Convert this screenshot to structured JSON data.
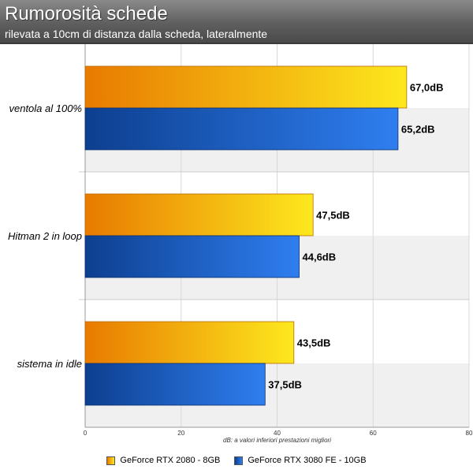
{
  "chart_data": {
    "type": "bar",
    "orientation": "horizontal",
    "title": "Rumorosità schede",
    "subtitle": "rilevata a 10cm di distanza dalla scheda, lateralmente",
    "categories": [
      "ventola al 100%",
      "Hitman 2 in loop",
      "sistema in idle"
    ],
    "series": [
      {
        "name": "GeForce RTX 2080 - 8GB",
        "values": [
          67.0,
          47.5,
          43.5
        ],
        "labels": [
          "67,0dB",
          "47,5dB",
          "43,5dB"
        ],
        "color": "#f0a010"
      },
      {
        "name": "GeForce RTX 3080 FE - 10GB",
        "values": [
          65.2,
          44.6,
          37.5
        ],
        "labels": [
          "65,2dB",
          "44,6dB",
          "37,5dB"
        ],
        "color": "#1e64c8"
      }
    ],
    "xlim": [
      0,
      80
    ],
    "xticks": [
      "0",
      "20",
      "40",
      "60",
      "80"
    ],
    "note": "dB: a valori inferiori prestazioni migliori",
    "grid": true,
    "legend_position": "bottom"
  }
}
